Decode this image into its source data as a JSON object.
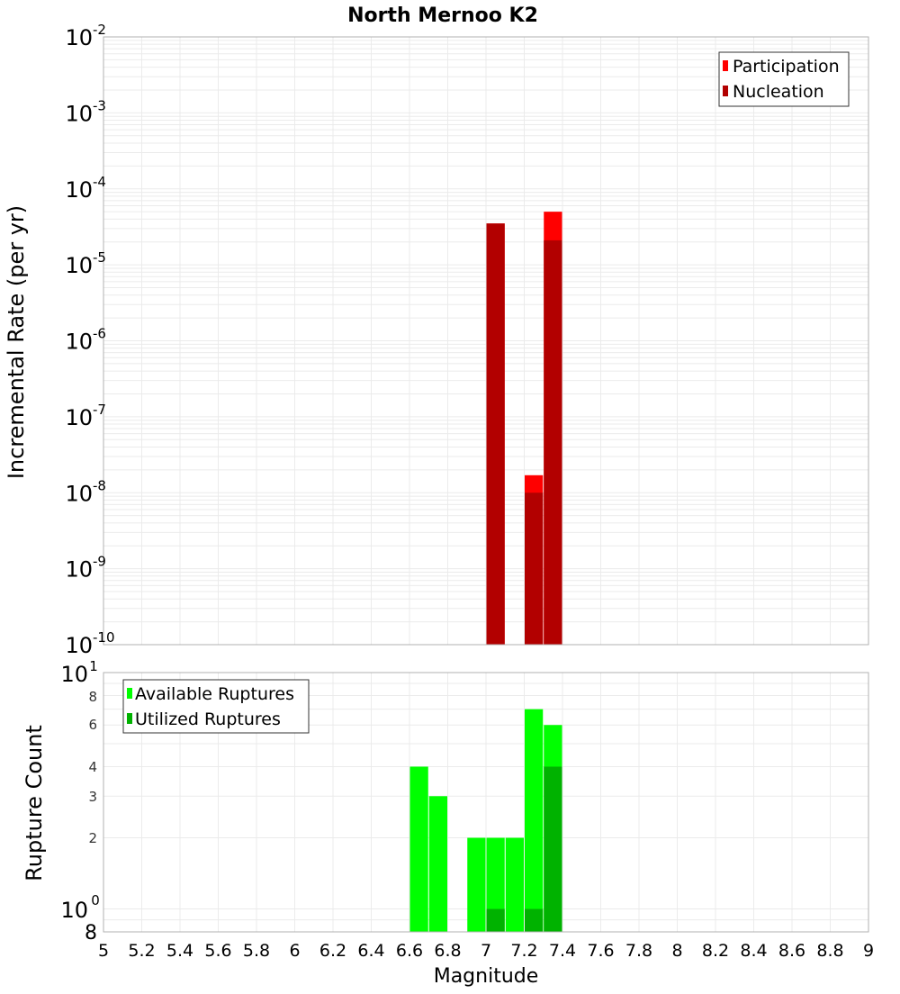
{
  "chart_data": [
    {
      "type": "bar",
      "title": "North Mernoo K2",
      "xlabel": "",
      "ylabel": "Incremental Rate (per yr)",
      "yscale": "log",
      "xlim": [
        5,
        9
      ],
      "ylim": [
        1e-10,
        0.01
      ],
      "grid": true,
      "legend_position": "top-right",
      "y_ticks": [
        "10^-2",
        "10^-3",
        "10^-4",
        "10^-5",
        "10^-6",
        "10^-7",
        "10^-8",
        "10^-9",
        "10^-10"
      ],
      "bar_width": 0.1,
      "series": [
        {
          "name": "Participation",
          "color": "#ff0000",
          "x": [
            7.05,
            7.25,
            7.35
          ],
          "values": [
            3.5e-05,
            1.7e-08,
            5e-05
          ]
        },
        {
          "name": "Nucleation",
          "color": "#b20000",
          "x": [
            7.05,
            7.25,
            7.35
          ],
          "values": [
            3.5e-05,
            1e-08,
            2.1e-05
          ]
        }
      ]
    },
    {
      "type": "bar",
      "title": "",
      "xlabel": "Magnitude",
      "ylabel": "Rupture Count",
      "yscale": "log",
      "xlim": [
        5,
        9
      ],
      "ylim": [
        0.8,
        10
      ],
      "grid": true,
      "legend_position": "top-left",
      "x_ticks": [
        "5",
        "5.2",
        "5.4",
        "5.6",
        "5.8",
        "6",
        "6.2",
        "6.4",
        "6.6",
        "6.8",
        "7",
        "7.2",
        "7.4",
        "7.6",
        "7.8",
        "8",
        "8.2",
        "8.4",
        "8.6",
        "8.8",
        "9"
      ],
      "y_ticks": [
        "10^1",
        "8",
        "6",
        "4",
        "3",
        "2",
        "10^0",
        "8"
      ],
      "bar_width": 0.1,
      "series": [
        {
          "name": "Available Ruptures",
          "color": "#00ff00",
          "x": [
            6.65,
            6.75,
            6.95,
            7.05,
            7.15,
            7.25,
            7.35
          ],
          "values": [
            4,
            3,
            2,
            2,
            2,
            7,
            6
          ]
        },
        {
          "name": "Utilized Ruptures",
          "color": "#00b200",
          "x": [
            7.05,
            7.25,
            7.35
          ],
          "values": [
            1,
            1,
            4
          ]
        }
      ]
    }
  ],
  "title": "North Mernoo K2",
  "top": {
    "ylabel": "Incremental Rate (per yr)",
    "legend": [
      "Participation",
      "Nucleation"
    ],
    "yticks": [
      {
        "base": "10",
        "exp": "-2"
      },
      {
        "base": "10",
        "exp": "-3"
      },
      {
        "base": "10",
        "exp": "-4"
      },
      {
        "base": "10",
        "exp": "-5"
      },
      {
        "base": "10",
        "exp": "-6"
      },
      {
        "base": "10",
        "exp": "-7"
      },
      {
        "base": "10",
        "exp": "-8"
      },
      {
        "base": "10",
        "exp": "-9"
      },
      {
        "base": "10",
        "exp": "-10"
      }
    ]
  },
  "bottom": {
    "ylabel": "Rupture Count",
    "xlabel": "Magnitude",
    "legend": [
      "Available Ruptures",
      "Utilized Ruptures"
    ],
    "xticks": [
      "5",
      "5.2",
      "5.4",
      "5.6",
      "5.8",
      "6",
      "6.2",
      "6.4",
      "6.6",
      "6.8",
      "7",
      "7.2",
      "7.4",
      "7.6",
      "7.8",
      "8",
      "8.2",
      "8.4",
      "8.6",
      "8.8",
      "9"
    ]
  },
  "colors": {
    "participation": "#ff0000",
    "nucleation": "#b20000",
    "available": "#00ff00",
    "utilized": "#00b200",
    "grid": "#ebebeb",
    "frame": "#b0b0b0"
  }
}
